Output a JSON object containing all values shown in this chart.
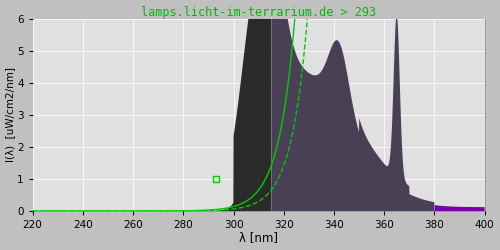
{
  "title": "lamps.licht-im-terrarium.de > 293",
  "xlabel": "λ [nm]",
  "ylabel": "I(λ)  [uW/cm2/nm]",
  "xlim": [
    220,
    400
  ],
  "ylim": [
    0,
    6.0
  ],
  "yticks": [
    0.0,
    1.0,
    2.0,
    3.0,
    4.0,
    5.0,
    6.0
  ],
  "xticks": [
    220,
    240,
    260,
    280,
    300,
    320,
    340,
    360,
    380,
    400
  ],
  "fig_bg_color": "#c0c0c0",
  "plot_bg_color": "#e0e0e0",
  "grid_color": "#f8f8f8",
  "title_color": "#00bb00",
  "color_uvb": "#2a2a2a",
  "color_uva": "#4a4055",
  "color_vis": "#7700aa",
  "green_color": "#00cc00"
}
